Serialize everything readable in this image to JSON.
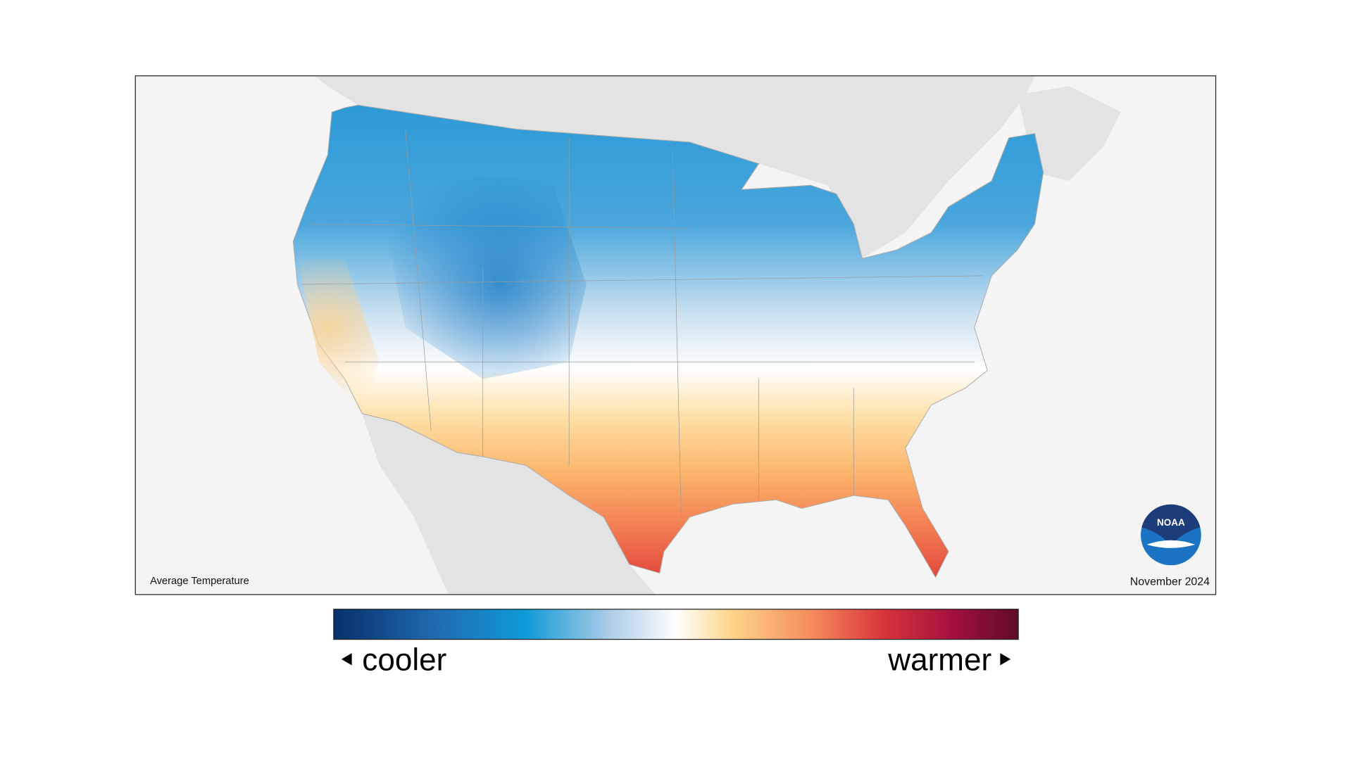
{
  "map": {
    "title": "Average Temperature",
    "date": "November 2024",
    "logo": "NOAA"
  },
  "legend": {
    "low": "cooler",
    "high": "warmer"
  }
}
